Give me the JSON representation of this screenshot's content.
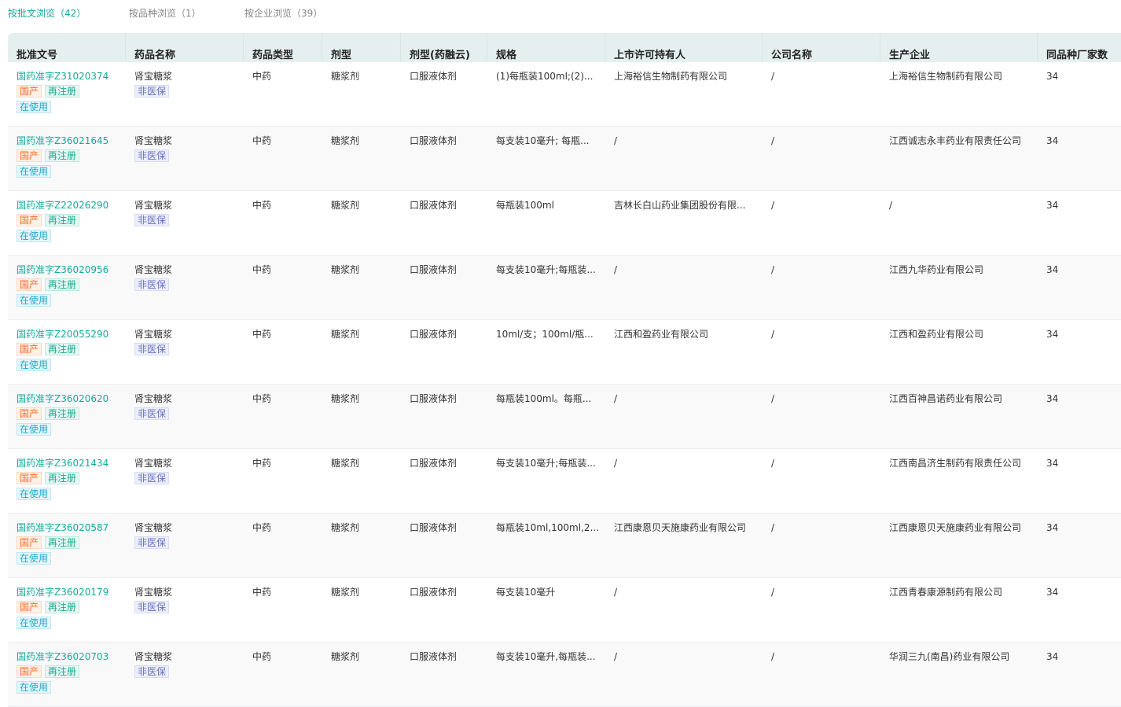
{
  "tabs": [
    {
      "label": "按批文浏览（42）",
      "active": true
    },
    {
      "label": "按品种浏览（1）",
      "active": false
    },
    {
      "label": "按企业浏览（39）",
      "active": false
    }
  ],
  "columns": [
    "批准文号",
    "药品名称",
    "药品类型",
    "剂型",
    "剂型(药融云)",
    "规格",
    "上市许可持有人",
    "公司名称",
    "生产企业",
    "同品种厂家数"
  ],
  "colors": {
    "accent": "#17a899",
    "tag_domestic": "#ff6a2a",
    "tag_reregister": "#1aa88f",
    "tag_in_use": "#20a8c8",
    "tag_non_insurance": "#6a72c0"
  },
  "tag_labels": {
    "domestic": "国产",
    "reregister": "再注册",
    "in_use": "在使用",
    "non_insurance": "非医保"
  },
  "rows": [
    {
      "approval": "国药准字Z31020374",
      "name": "肾宝糖浆",
      "type": "中药",
      "form": "糖浆剂",
      "form2": "口服液体剂",
      "spec": "(1)每瓶装100ml;(2)...",
      "holder": "上海裕信生物制药有限公司",
      "company": "/",
      "manufacturer": "上海裕信生物制药有限公司",
      "count": "34"
    },
    {
      "approval": "国药准字Z36021645",
      "name": "肾宝糖浆",
      "type": "中药",
      "form": "糖浆剂",
      "form2": "口服液体剂",
      "spec": "每支装10毫升; 每瓶...",
      "holder": "/",
      "company": "/",
      "manufacturer": "江西诚志永丰药业有限责任公司",
      "count": "34"
    },
    {
      "approval": "国药准字Z22026290",
      "name": "肾宝糖浆",
      "type": "中药",
      "form": "糖浆剂",
      "form2": "口服液体剂",
      "spec": "每瓶装100ml",
      "holder": "吉林长白山药业集团股份有限...",
      "company": "/",
      "manufacturer": "/",
      "count": "34"
    },
    {
      "approval": "国药准字Z36020956",
      "name": "肾宝糖浆",
      "type": "中药",
      "form": "糖浆剂",
      "form2": "口服液体剂",
      "spec": "每支装10毫升;每瓶装...",
      "holder": "/",
      "company": "/",
      "manufacturer": "江西九华药业有限公司",
      "count": "34"
    },
    {
      "approval": "国药准字Z20055290",
      "name": "肾宝糖浆",
      "type": "中药",
      "form": "糖浆剂",
      "form2": "口服液体剂",
      "spec": "10ml/支；100ml/瓶...",
      "holder": "江西和盈药业有限公司",
      "company": "/",
      "manufacturer": "江西和盈药业有限公司",
      "count": "34"
    },
    {
      "approval": "国药准字Z36020620",
      "name": "肾宝糖浆",
      "type": "中药",
      "form": "糖浆剂",
      "form2": "口服液体剂",
      "spec": "每瓶装100ml。每瓶...",
      "holder": "/",
      "company": "/",
      "manufacturer": "江西百神昌诺药业有限公司",
      "count": "34"
    },
    {
      "approval": "国药准字Z36021434",
      "name": "肾宝糖浆",
      "type": "中药",
      "form": "糖浆剂",
      "form2": "口服液体剂",
      "spec": "每支装10毫升;每瓶装...",
      "holder": "/",
      "company": "/",
      "manufacturer": "江西南昌济生制药有限责任公司",
      "count": "34"
    },
    {
      "approval": "国药准字Z36020587",
      "name": "肾宝糖浆",
      "type": "中药",
      "form": "糖浆剂",
      "form2": "口服液体剂",
      "spec": "每瓶装10ml,100ml,2...",
      "holder": "江西康恩贝天施康药业有限公司",
      "company": "/",
      "manufacturer": "江西康恩贝天施康药业有限公司",
      "count": "34"
    },
    {
      "approval": "国药准字Z36020179",
      "name": "肾宝糖浆",
      "type": "中药",
      "form": "糖浆剂",
      "form2": "口服液体剂",
      "spec": "每支装10毫升",
      "holder": "/",
      "company": "/",
      "manufacturer": "江西青春康源制药有限公司",
      "count": "34"
    },
    {
      "approval": "国药准字Z36020703",
      "name": "肾宝糖浆",
      "type": "中药",
      "form": "糖浆剂",
      "form2": "口服液体剂",
      "spec": "每支装10毫升,每瓶装...",
      "holder": "/",
      "company": "/",
      "manufacturer": "华润三九(南昌)药业有限公司",
      "count": "34"
    }
  ]
}
